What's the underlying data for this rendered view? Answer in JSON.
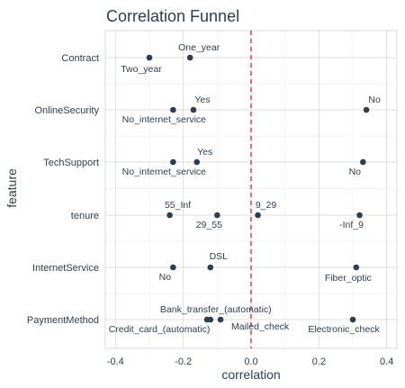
{
  "chart_data": {
    "type": "scatter",
    "title": "Correlation Funnel",
    "xlabel": "correlation",
    "ylabel": "feature",
    "xlim": [
      -0.43,
      0.43
    ],
    "x_ticks": [
      -0.4,
      -0.2,
      0.0,
      0.2,
      0.4
    ],
    "x_tick_labels": [
      "-0.4",
      "-0.2",
      "0.0",
      "0.2",
      "0.4"
    ],
    "categories": [
      "PaymentMethod",
      "InternetService",
      "tenure",
      "TechSupport",
      "OnlineSecurity",
      "Contract"
    ],
    "grid": true,
    "reference_line": {
      "x": 0,
      "style": "dashed",
      "color": "#e41a1c"
    },
    "point_color": "#2c3e50",
    "points": [
      {
        "feature": "Contract",
        "level": "One_year",
        "x": -0.18
      },
      {
        "feature": "Contract",
        "level": "Two_year",
        "x": -0.3
      },
      {
        "feature": "OnlineSecurity",
        "level": "Yes",
        "x": -0.17
      },
      {
        "feature": "OnlineSecurity",
        "level": "No_internet_service",
        "x": -0.23
      },
      {
        "feature": "OnlineSecurity",
        "level": "No",
        "x": 0.34
      },
      {
        "feature": "TechSupport",
        "level": "Yes",
        "x": -0.16
      },
      {
        "feature": "TechSupport",
        "level": "No_internet_service",
        "x": -0.23
      },
      {
        "feature": "TechSupport",
        "level": "No",
        "x": 0.33
      },
      {
        "feature": "tenure",
        "level": "55_Inf",
        "x": -0.24
      },
      {
        "feature": "tenure",
        "level": "29_55",
        "x": -0.1
      },
      {
        "feature": "tenure",
        "level": "9_29",
        "x": 0.02
      },
      {
        "feature": "tenure",
        "level": "-Inf_9",
        "x": 0.32
      },
      {
        "feature": "InternetService",
        "level": "DSL",
        "x": -0.12
      },
      {
        "feature": "InternetService",
        "level": "No",
        "x": -0.23
      },
      {
        "feature": "InternetService",
        "level": "Fiber_optic",
        "x": 0.31
      },
      {
        "feature": "PaymentMethod",
        "level": "Bank_transfer_(automatic)",
        "x": -0.12
      },
      {
        "feature": "PaymentMethod",
        "level": "Credit_card_(automatic)",
        "x": -0.13
      },
      {
        "feature": "PaymentMethod",
        "level": "Mailed_check",
        "x": -0.09
      },
      {
        "feature": "PaymentMethod",
        "level": "Electronic_check",
        "x": 0.3
      }
    ]
  }
}
